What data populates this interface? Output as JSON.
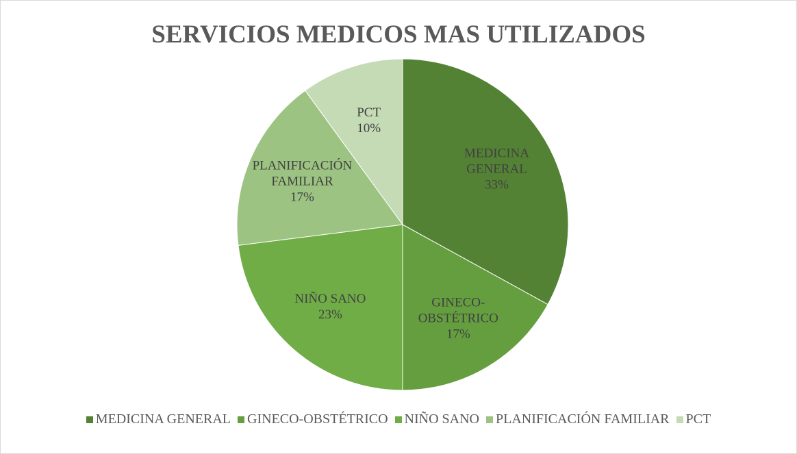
{
  "chart_data": {
    "type": "pie",
    "title": "SERVICIOS MEDICOS MAS UTILIZADOS",
    "categories": [
      "MEDICINA GENERAL",
      "GINECO-OBSTÉTRICO",
      "NIÑO SANO",
      "PLANIFICACIÓN FAMILIAR",
      "PCT"
    ],
    "values": [
      33,
      17,
      23,
      17,
      10
    ],
    "value_labels": [
      "33%",
      "17%",
      "23%",
      "17%",
      "10%"
    ],
    "colors": [
      "#548235",
      "#659e3f",
      "#70ad47",
      "#9cc382",
      "#c5dbb5"
    ],
    "legend": "bottom"
  }
}
